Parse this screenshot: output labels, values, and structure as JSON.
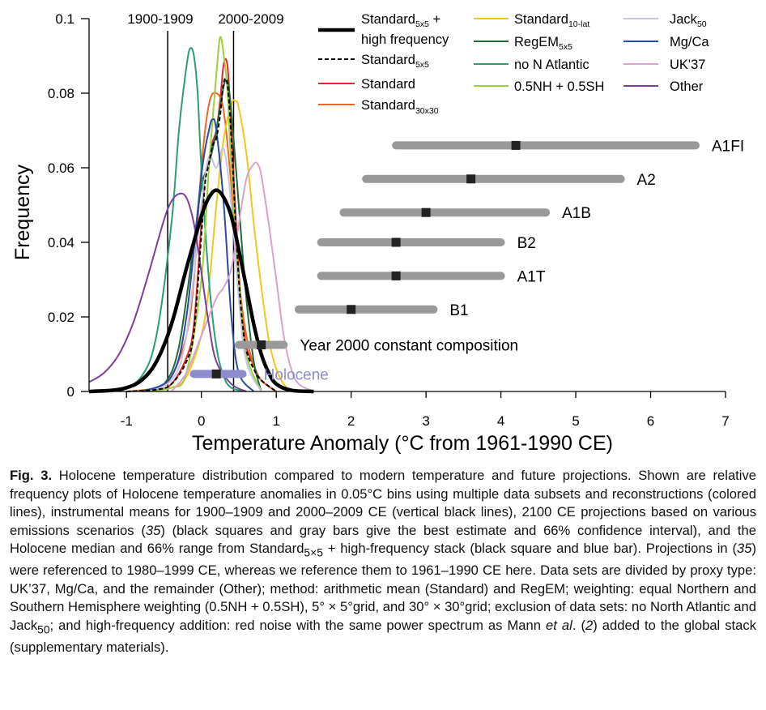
{
  "chart_data": {
    "type": "line",
    "xlabel": "Temperature Anomaly (°C from 1961-1990 CE)",
    "ylabel": "Frequency",
    "xlim": [
      -1.5,
      7
    ],
    "ylim": [
      0,
      0.1
    ],
    "xticks": [
      -1,
      0,
      1,
      2,
      3,
      4,
      5,
      6,
      7
    ],
    "yticks": [
      0,
      0.02,
      0.04,
      0.06,
      0.08,
      0.1
    ],
    "ytick_labels": [
      "0",
      "0.02",
      "0.04",
      "0.06",
      "0.08",
      "0.1"
    ],
    "vertical_lines": [
      {
        "label": "1900-1909",
        "x": -0.45
      },
      {
        "label": "2000-2009",
        "x": 0.43
      }
    ],
    "series": [
      {
        "name": "Standard5x5 + high frequency",
        "color": "#000000",
        "style": "thick",
        "x": [
          -1.5,
          -1.2,
          -1.0,
          -0.8,
          -0.6,
          -0.4,
          -0.2,
          0.0,
          0.1,
          0.2,
          0.3,
          0.4,
          0.5,
          0.6,
          0.7,
          0.8,
          0.9,
          1.0,
          1.2,
          1.5
        ],
        "y": [
          0.0,
          0.0003,
          0.001,
          0.003,
          0.008,
          0.018,
          0.033,
          0.047,
          0.052,
          0.054,
          0.052,
          0.047,
          0.038,
          0.028,
          0.018,
          0.01,
          0.005,
          0.002,
          0.0003,
          0.0
        ]
      },
      {
        "name": "Standard5x5",
        "color": "#000000",
        "style": "dashed",
        "x": [
          -1.0,
          -0.6,
          -0.4,
          -0.2,
          -0.1,
          0.0,
          0.05,
          0.1,
          0.15,
          0.2,
          0.25,
          0.3,
          0.35,
          0.4,
          0.45,
          0.5,
          0.55,
          0.6,
          0.7,
          0.8,
          1.0
        ],
        "y": [
          0.0,
          0.0005,
          0.002,
          0.008,
          0.016,
          0.042,
          0.056,
          0.061,
          0.066,
          0.068,
          0.074,
          0.083,
          0.082,
          0.068,
          0.048,
          0.03,
          0.018,
          0.011,
          0.006,
          0.003,
          0.0
        ]
      },
      {
        "name": "Standard",
        "color": "#e8232a",
        "style": "solid",
        "x": [
          -1.0,
          -0.6,
          -0.4,
          -0.2,
          -0.1,
          0.0,
          0.05,
          0.1,
          0.15,
          0.2,
          0.25,
          0.3,
          0.35,
          0.4,
          0.45,
          0.5,
          0.55,
          0.6,
          0.7,
          0.8,
          1.0
        ],
        "y": [
          0.0,
          0.0005,
          0.002,
          0.009,
          0.018,
          0.045,
          0.058,
          0.062,
          0.067,
          0.07,
          0.078,
          0.088,
          0.087,
          0.07,
          0.05,
          0.032,
          0.02,
          0.012,
          0.007,
          0.003,
          0.0
        ]
      },
      {
        "name": "Standard30x30",
        "color": "#f26522",
        "style": "solid",
        "x": [
          -1.0,
          -0.6,
          -0.4,
          -0.2,
          -0.1,
          0.0,
          0.1,
          0.2,
          0.3,
          0.4,
          0.5,
          0.6,
          0.7,
          0.8,
          1.0
        ],
        "y": [
          0.0,
          0.001,
          0.004,
          0.015,
          0.03,
          0.06,
          0.077,
          0.08,
          0.075,
          0.055,
          0.03,
          0.015,
          0.007,
          0.003,
          0.0
        ]
      },
      {
        "name": "Standard10-lat",
        "color": "#f7c519",
        "style": "solid",
        "x": [
          -0.8,
          -0.4,
          -0.2,
          0.0,
          0.1,
          0.2,
          0.3,
          0.4,
          0.45,
          0.5,
          0.6,
          0.7,
          0.8,
          0.9,
          1.0,
          1.1,
          1.2
        ],
        "y": [
          0.0,
          0.001,
          0.004,
          0.015,
          0.028,
          0.05,
          0.068,
          0.077,
          0.078,
          0.076,
          0.064,
          0.045,
          0.028,
          0.014,
          0.006,
          0.002,
          0.0
        ]
      },
      {
        "name": "RegEM5x5",
        "color": "#1f6b3a",
        "style": "solid",
        "x": [
          -0.8,
          -0.5,
          -0.3,
          -0.1,
          0.0,
          0.1,
          0.15,
          0.2,
          0.3,
          0.35,
          0.4,
          0.5,
          0.6,
          0.7,
          0.8
        ],
        "y": [
          0.0,
          0.002,
          0.012,
          0.04,
          0.055,
          0.061,
          0.065,
          0.07,
          0.082,
          0.083,
          0.075,
          0.05,
          0.025,
          0.008,
          0.0
        ]
      },
      {
        "name": "no N Atlantic",
        "color": "#2e9d6f",
        "style": "solid",
        "x": [
          -1.1,
          -0.8,
          -0.6,
          -0.4,
          -0.3,
          -0.2,
          -0.15,
          -0.1,
          -0.05,
          0.0,
          0.1,
          0.2,
          0.3,
          0.4,
          0.6
        ],
        "y": [
          0.0,
          0.004,
          0.015,
          0.045,
          0.07,
          0.087,
          0.092,
          0.09,
          0.08,
          0.06,
          0.03,
          0.012,
          0.004,
          0.001,
          0.0
        ]
      },
      {
        "name": "0.5NH + 0.5SH",
        "color": "#9bcf3c",
        "style": "solid",
        "x": [
          -0.8,
          -0.4,
          -0.2,
          0.0,
          0.1,
          0.2,
          0.25,
          0.3,
          0.35,
          0.4,
          0.5,
          0.6,
          0.8
        ],
        "y": [
          0.0,
          0.001,
          0.005,
          0.03,
          0.06,
          0.085,
          0.095,
          0.09,
          0.08,
          0.06,
          0.03,
          0.01,
          0.0
        ]
      },
      {
        "name": "Jack50",
        "color": "#c7c5e3",
        "style": "solid",
        "x": [
          -0.8,
          -0.4,
          -0.2,
          0.0,
          0.1,
          0.2,
          0.3,
          0.4,
          0.5,
          0.6,
          0.8
        ],
        "y": [
          0.0,
          0.003,
          0.015,
          0.05,
          0.063,
          0.06,
          0.065,
          0.05,
          0.025,
          0.008,
          0.0
        ]
      },
      {
        "name": "Mg/Ca",
        "color": "#2b4aa0",
        "style": "solid",
        "x": [
          -0.8,
          -0.4,
          -0.2,
          0.0,
          0.1,
          0.15,
          0.2,
          0.3,
          0.4,
          0.5,
          0.7
        ],
        "y": [
          0.0,
          0.004,
          0.02,
          0.058,
          0.07,
          0.073,
          0.07,
          0.05,
          0.02,
          0.005,
          0.0
        ]
      },
      {
        "name": "UK'37",
        "color": "#d8a3cc",
        "style": "solid",
        "x": [
          -0.4,
          -0.2,
          0.0,
          0.2,
          0.3,
          0.4,
          0.5,
          0.6,
          0.7,
          0.75,
          0.8,
          0.9,
          1.0,
          1.1,
          1.2,
          1.3,
          1.5
        ],
        "y": [
          0.0,
          0.005,
          0.015,
          0.025,
          0.028,
          0.033,
          0.045,
          0.057,
          0.061,
          0.061,
          0.058,
          0.045,
          0.03,
          0.015,
          0.006,
          0.002,
          0.0
        ]
      },
      {
        "name": "Other",
        "color": "#7b3f9d",
        "style": "solid",
        "x": [
          -1.5,
          -1.3,
          -1.1,
          -0.9,
          -0.7,
          -0.5,
          -0.4,
          -0.3,
          -0.2,
          -0.1,
          0.0,
          0.1,
          0.2,
          0.4,
          0.6
        ],
        "y": [
          0.0025,
          0.005,
          0.01,
          0.019,
          0.032,
          0.046,
          0.051,
          0.053,
          0.052,
          0.045,
          0.032,
          0.018,
          0.008,
          0.002,
          0.0
        ]
      }
    ],
    "legend": {
      "placement": "top-right"
    },
    "projections": [
      {
        "label": "A1FI",
        "best": 4.2,
        "low": 2.6,
        "high": 6.6,
        "y": 0.066
      },
      {
        "label": "A2",
        "best": 3.6,
        "low": 2.2,
        "high": 5.6,
        "y": 0.057
      },
      {
        "label": "A1B",
        "best": 3.0,
        "low": 1.9,
        "high": 4.6,
        "y": 0.048
      },
      {
        "label": "B2",
        "best": 2.6,
        "low": 1.6,
        "high": 4.0,
        "y": 0.04
      },
      {
        "label": "A1T",
        "best": 2.6,
        "low": 1.6,
        "high": 4.0,
        "y": 0.031
      },
      {
        "label": "B1",
        "best": 2.0,
        "low": 1.3,
        "high": 3.1,
        "y": 0.022
      },
      {
        "label": "Year 2000 constant composition",
        "best": 0.8,
        "low": 0.5,
        "high": 1.1,
        "y": 0.0125
      }
    ],
    "holocene": {
      "label": "Holocene",
      "median": 0.2,
      "low": -0.1,
      "high": 0.55,
      "y": 0.0047,
      "color": "#8e8ccc"
    }
  },
  "legend_text": {
    "l1_pre": "Standard",
    "l1_sub": "5x5",
    "l1_post": " +",
    "l1_line2": "high frequency",
    "l2_pre": "Standard",
    "l2_sub": "5x5",
    "l3": "Standard",
    "l4_pre": "Standard",
    "l4_sub": "30x30",
    "l5_pre": "Standard",
    "l5_sub": "10-lat",
    "l6_pre": "RegEM",
    "l6_sub": "5x5",
    "l7": "no N Atlantic",
    "l8": "0.5NH + 0.5SH",
    "l9_pre": "Jack",
    "l9_sub": "50",
    "l10": "Mg/Ca",
    "l11": "UK'37",
    "l12": "Other"
  },
  "caption": {
    "label": "Fig. 3.",
    "part1": " Holocene temperature distribution compared to modern temperature and future projections. Shown are relative frequency plots of Holocene temperature anomalies in 0.05°C bins using multiple data subsets and reconstructions (colored lines), instrumental means for 1900–1909 and 2000–2009 CE (vertical black lines), 2100 CE projections based on various emissions scenarios (",
    "ref1": "35",
    "part2": ") (black squares and gray bars give the best estimate and 66% confidence interval), and the Holocene median and 66% range from Standard",
    "sub1": "5×5",
    "part3": " + high-frequency stack (black square and blue bar).  Projections in (",
    "ref2": "35",
    "part4": ") were referenced to 1980–1999 CE, whereas we reference them to 1961–1990 CE here. Data sets are divided by proxy type:  UK’37, Mg/Ca, and the remainder (Other); method: arithmetic mean (Standard) and RegEM; weighting: equal Northern and Southern Hemisphere weighting (0.5NH + 0.5SH), 5° × 5°grid, and 30° × 30°grid; exclusion of data sets:  no North Atlantic and Jack",
    "sub2": "50",
    "part5": "; and high-frequency addition:  red noise with the same power spectrum as Mann ",
    "etal": "et al",
    "part6": ". (",
    "ref3": "2",
    "part7": ") added to the global stack (supplementary materials)."
  }
}
